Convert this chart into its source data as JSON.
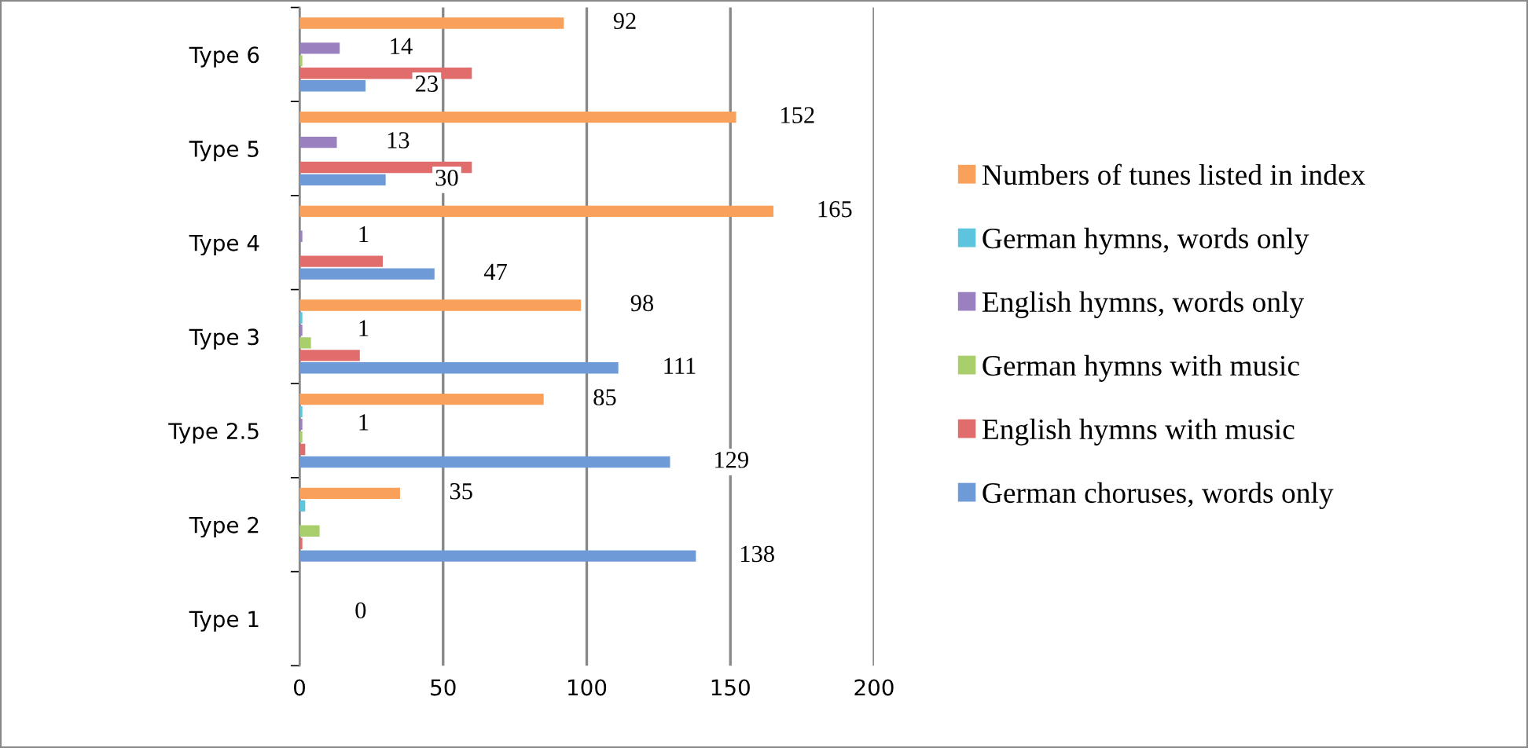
{
  "chart_data": {
    "type": "bar",
    "orientation": "horizontal",
    "categories": [
      "Type 6",
      "Type 5",
      "Type 4",
      "Type 3",
      "Type 2.5",
      "Type 2",
      "Type 1"
    ],
    "series": [
      {
        "name": "German choruses, words only",
        "color": "#6f9ad8",
        "values": [
          23,
          30,
          47,
          111,
          129,
          138,
          0
        ],
        "value_labels": [
          "23",
          "30",
          "47",
          "111",
          "129",
          "138",
          null
        ]
      },
      {
        "name": "English hymns with music",
        "color": "#e06d6b",
        "values": [
          60,
          60,
          29,
          21,
          2,
          1,
          0
        ],
        "value_labels": [
          null,
          null,
          null,
          null,
          null,
          null,
          null
        ]
      },
      {
        "name": "German hymns with music",
        "color": "#a9cf6c",
        "values": [
          1,
          0,
          0,
          4,
          1,
          7,
          0
        ],
        "value_labels": [
          null,
          null,
          null,
          null,
          null,
          null,
          null
        ]
      },
      {
        "name": "English hymns, words only",
        "color": "#9b80c0",
        "values": [
          14,
          13,
          1,
          1,
          1,
          0,
          0
        ],
        "value_labels": [
          "14",
          "13",
          "1",
          "1",
          "1",
          null,
          "0"
        ]
      },
      {
        "name": "German hymns, words only",
        "color": "#5cc4dc",
        "values": [
          0,
          0,
          0,
          1,
          1,
          2,
          0
        ],
        "value_labels": [
          null,
          null,
          null,
          null,
          null,
          null,
          null
        ]
      },
      {
        "name": "Numbers of tunes listed in index",
        "color": "#f9a05a",
        "values": [
          92,
          152,
          165,
          98,
          85,
          35,
          0
        ],
        "value_labels": [
          "92",
          "152",
          "165",
          "98",
          "85",
          "35",
          null
        ]
      }
    ],
    "xlim": [
      0,
      200
    ],
    "xticks": [
      0,
      50,
      100,
      150,
      200
    ],
    "grid": "x",
    "legend": "right"
  }
}
